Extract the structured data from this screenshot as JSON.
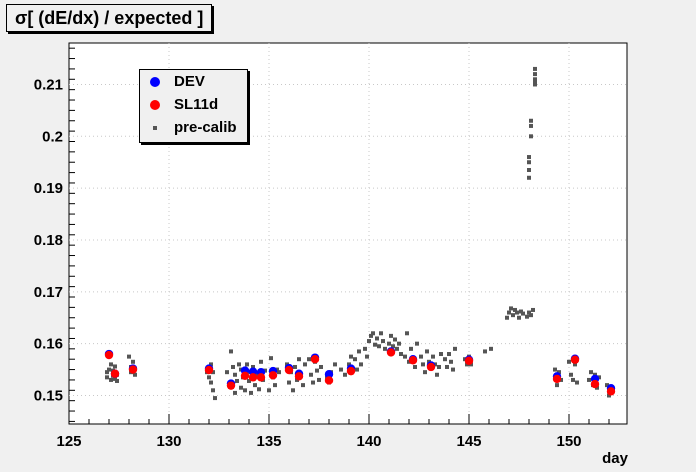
{
  "chart_data": {
    "type": "scatter",
    "title": "σ[ (dE/dx) / expected ]",
    "xlabel": "day",
    "ylabel": "",
    "xlim": [
      125,
      152.9
    ],
    "ylim": [
      0.1445,
      0.218
    ],
    "x_ticks": [
      "125",
      "130",
      "135",
      "140",
      "145",
      "150"
    ],
    "x_tick_values": [
      125,
      130,
      135,
      140,
      145,
      150
    ],
    "y_ticks": [
      "0.15",
      "0.16",
      "0.17",
      "0.18",
      "0.19",
      "0.2",
      "0.21"
    ],
    "y_tick_values": [
      0.15,
      0.16,
      0.17,
      0.18,
      0.19,
      0.2,
      0.21
    ],
    "grid": true,
    "legend_position": "top-left",
    "series": [
      {
        "name": "DEV",
        "color": "#0000ff",
        "marker": "circle",
        "x": [
          127.0,
          127.3,
          128.2,
          132.0,
          133.1,
          133.8,
          134.2,
          134.6,
          135.2,
          136.0,
          136.5,
          137.3,
          138.0,
          139.1,
          141.1,
          142.2,
          143.1,
          145.0,
          149.4,
          150.3,
          151.3,
          152.1
        ],
        "y": [
          0.158,
          0.1542,
          0.1552,
          0.1552,
          0.1523,
          0.1548,
          0.1546,
          0.1545,
          0.1547,
          0.1553,
          0.1542,
          0.1573,
          0.1541,
          0.1552,
          0.1585,
          0.157,
          0.1558,
          0.1569,
          0.1537,
          0.1571,
          0.1532,
          0.1514
        ]
      },
      {
        "name": "SL11d",
        "color": "#ff0000",
        "marker": "circle",
        "x": [
          127.0,
          127.3,
          128.2,
          132.0,
          133.1,
          133.8,
          134.2,
          134.6,
          135.2,
          136.0,
          136.5,
          137.3,
          138.0,
          139.1,
          141.1,
          142.2,
          143.1,
          145.0,
          149.4,
          150.3,
          151.3,
          152.1
        ],
        "y": [
          0.1578,
          0.1542,
          0.155,
          0.1549,
          0.1519,
          0.1538,
          0.1535,
          0.1535,
          0.1539,
          0.1549,
          0.1537,
          0.157,
          0.1529,
          0.1547,
          0.1583,
          0.1568,
          0.1555,
          0.1567,
          0.1532,
          0.1569,
          0.1522,
          0.1508
        ]
      },
      {
        "name": "pre-calib",
        "color": "#555555",
        "marker": "square",
        "x": [
          126.9,
          126.9,
          127.0,
          127.1,
          127.1,
          127.2,
          127.2,
          127.3,
          127.3,
          127.4,
          127.4,
          128.0,
          128.1,
          128.1,
          128.2,
          128.3,
          128.3,
          131.9,
          132.0,
          132.1,
          132.1,
          132.2,
          132.2,
          132.3,
          132.9,
          133.0,
          133.1,
          133.2,
          133.3,
          133.3,
          133.4,
          133.5,
          133.6,
          133.6,
          133.7,
          133.8,
          133.9,
          134.0,
          134.0,
          134.1,
          134.2,
          134.3,
          134.4,
          134.5,
          134.6,
          134.7,
          134.8,
          135.0,
          135.1,
          135.2,
          135.3,
          135.4,
          135.5,
          135.9,
          136.0,
          136.1,
          136.2,
          136.3,
          136.4,
          136.5,
          136.6,
          136.7,
          136.8,
          137.0,
          137.1,
          137.2,
          137.3,
          137.4,
          137.5,
          137.6,
          137.9,
          138.0,
          138.1,
          138.3,
          138.6,
          138.8,
          139.0,
          139.1,
          139.3,
          139.4,
          139.5,
          139.6,
          139.8,
          139.9,
          140.0,
          140.1,
          140.2,
          140.3,
          140.4,
          140.5,
          140.6,
          140.7,
          140.8,
          141.0,
          141.1,
          141.2,
          141.3,
          141.4,
          141.5,
          141.6,
          141.8,
          141.9,
          142.0,
          142.1,
          142.2,
          142.3,
          142.4,
          142.6,
          142.7,
          142.8,
          142.9,
          143.0,
          143.1,
          143.2,
          143.3,
          143.4,
          143.5,
          143.6,
          143.8,
          143.9,
          144.0,
          144.1,
          144.2,
          144.3,
          144.8,
          144.9,
          145.0,
          145.1,
          145.8,
          146.1,
          146.9,
          147.0,
          147.1,
          147.2,
          147.3,
          147.4,
          147.5,
          147.6,
          147.7,
          147.9,
          148.0,
          148.1,
          148.2,
          148.0,
          148.0,
          148.0,
          148.0,
          148.1,
          148.1,
          148.1,
          148.3,
          148.3,
          148.3,
          148.3,
          148.3,
          149.3,
          149.4,
          149.5,
          149.6,
          150.0,
          150.1,
          150.2,
          150.3,
          150.4,
          151.0,
          151.1,
          151.2,
          151.3,
          151.4,
          151.5,
          151.9,
          152.0,
          152.1,
          152.2
        ],
        "y": [
          0.1535,
          0.1545,
          0.155,
          0.153,
          0.156,
          0.1538,
          0.1548,
          0.1532,
          0.1556,
          0.154,
          0.1528,
          0.1575,
          0.1545,
          0.1555,
          0.1565,
          0.154,
          0.1552,
          0.1545,
          0.1535,
          0.156,
          0.1525,
          0.151,
          0.1545,
          0.1495,
          0.1545,
          0.152,
          0.1585,
          0.1555,
          0.1505,
          0.154,
          0.1528,
          0.156,
          0.1515,
          0.155,
          0.1535,
          0.151,
          0.156,
          0.1528,
          0.1545,
          0.1505,
          0.1555,
          0.152,
          0.154,
          0.1512,
          0.1565,
          0.153,
          0.1548,
          0.151,
          0.1572,
          0.1535,
          0.152,
          0.155,
          0.1545,
          0.156,
          0.1525,
          0.1545,
          0.151,
          0.1555,
          0.153,
          0.157,
          0.154,
          0.152,
          0.156,
          0.157,
          0.154,
          0.1525,
          0.1565,
          0.1548,
          0.153,
          0.1555,
          0.1535,
          0.1525,
          0.1545,
          0.156,
          0.155,
          0.154,
          0.156,
          0.1575,
          0.157,
          0.155,
          0.1585,
          0.156,
          0.159,
          0.1575,
          0.1605,
          0.1615,
          0.162,
          0.1598,
          0.161,
          0.1595,
          0.162,
          0.1605,
          0.159,
          0.16,
          0.1615,
          0.1595,
          0.1608,
          0.159,
          0.16,
          0.158,
          0.1575,
          0.162,
          0.1565,
          0.159,
          0.157,
          0.1555,
          0.16,
          0.1575,
          0.156,
          0.1545,
          0.1585,
          0.1565,
          0.1552,
          0.1575,
          0.156,
          0.154,
          0.1555,
          0.158,
          0.157,
          0.1555,
          0.158,
          0.1565,
          0.155,
          0.159,
          0.157,
          0.156,
          0.1575,
          0.156,
          0.1585,
          0.159,
          0.165,
          0.166,
          0.1668,
          0.1655,
          0.1665,
          0.166,
          0.165,
          0.1662,
          0.1658,
          0.1652,
          0.166,
          0.1655,
          0.1665,
          0.192,
          0.1935,
          0.195,
          0.196,
          0.2,
          0.202,
          0.203,
          0.21,
          0.211,
          0.212,
          0.213,
          0.2105,
          0.155,
          0.152,
          0.1545,
          0.153,
          0.1565,
          0.154,
          0.153,
          0.156,
          0.1525,
          0.153,
          0.1545,
          0.152,
          0.154,
          0.1515,
          0.1535,
          0.152,
          0.15,
          0.1515,
          0.151
        ]
      }
    ]
  }
}
